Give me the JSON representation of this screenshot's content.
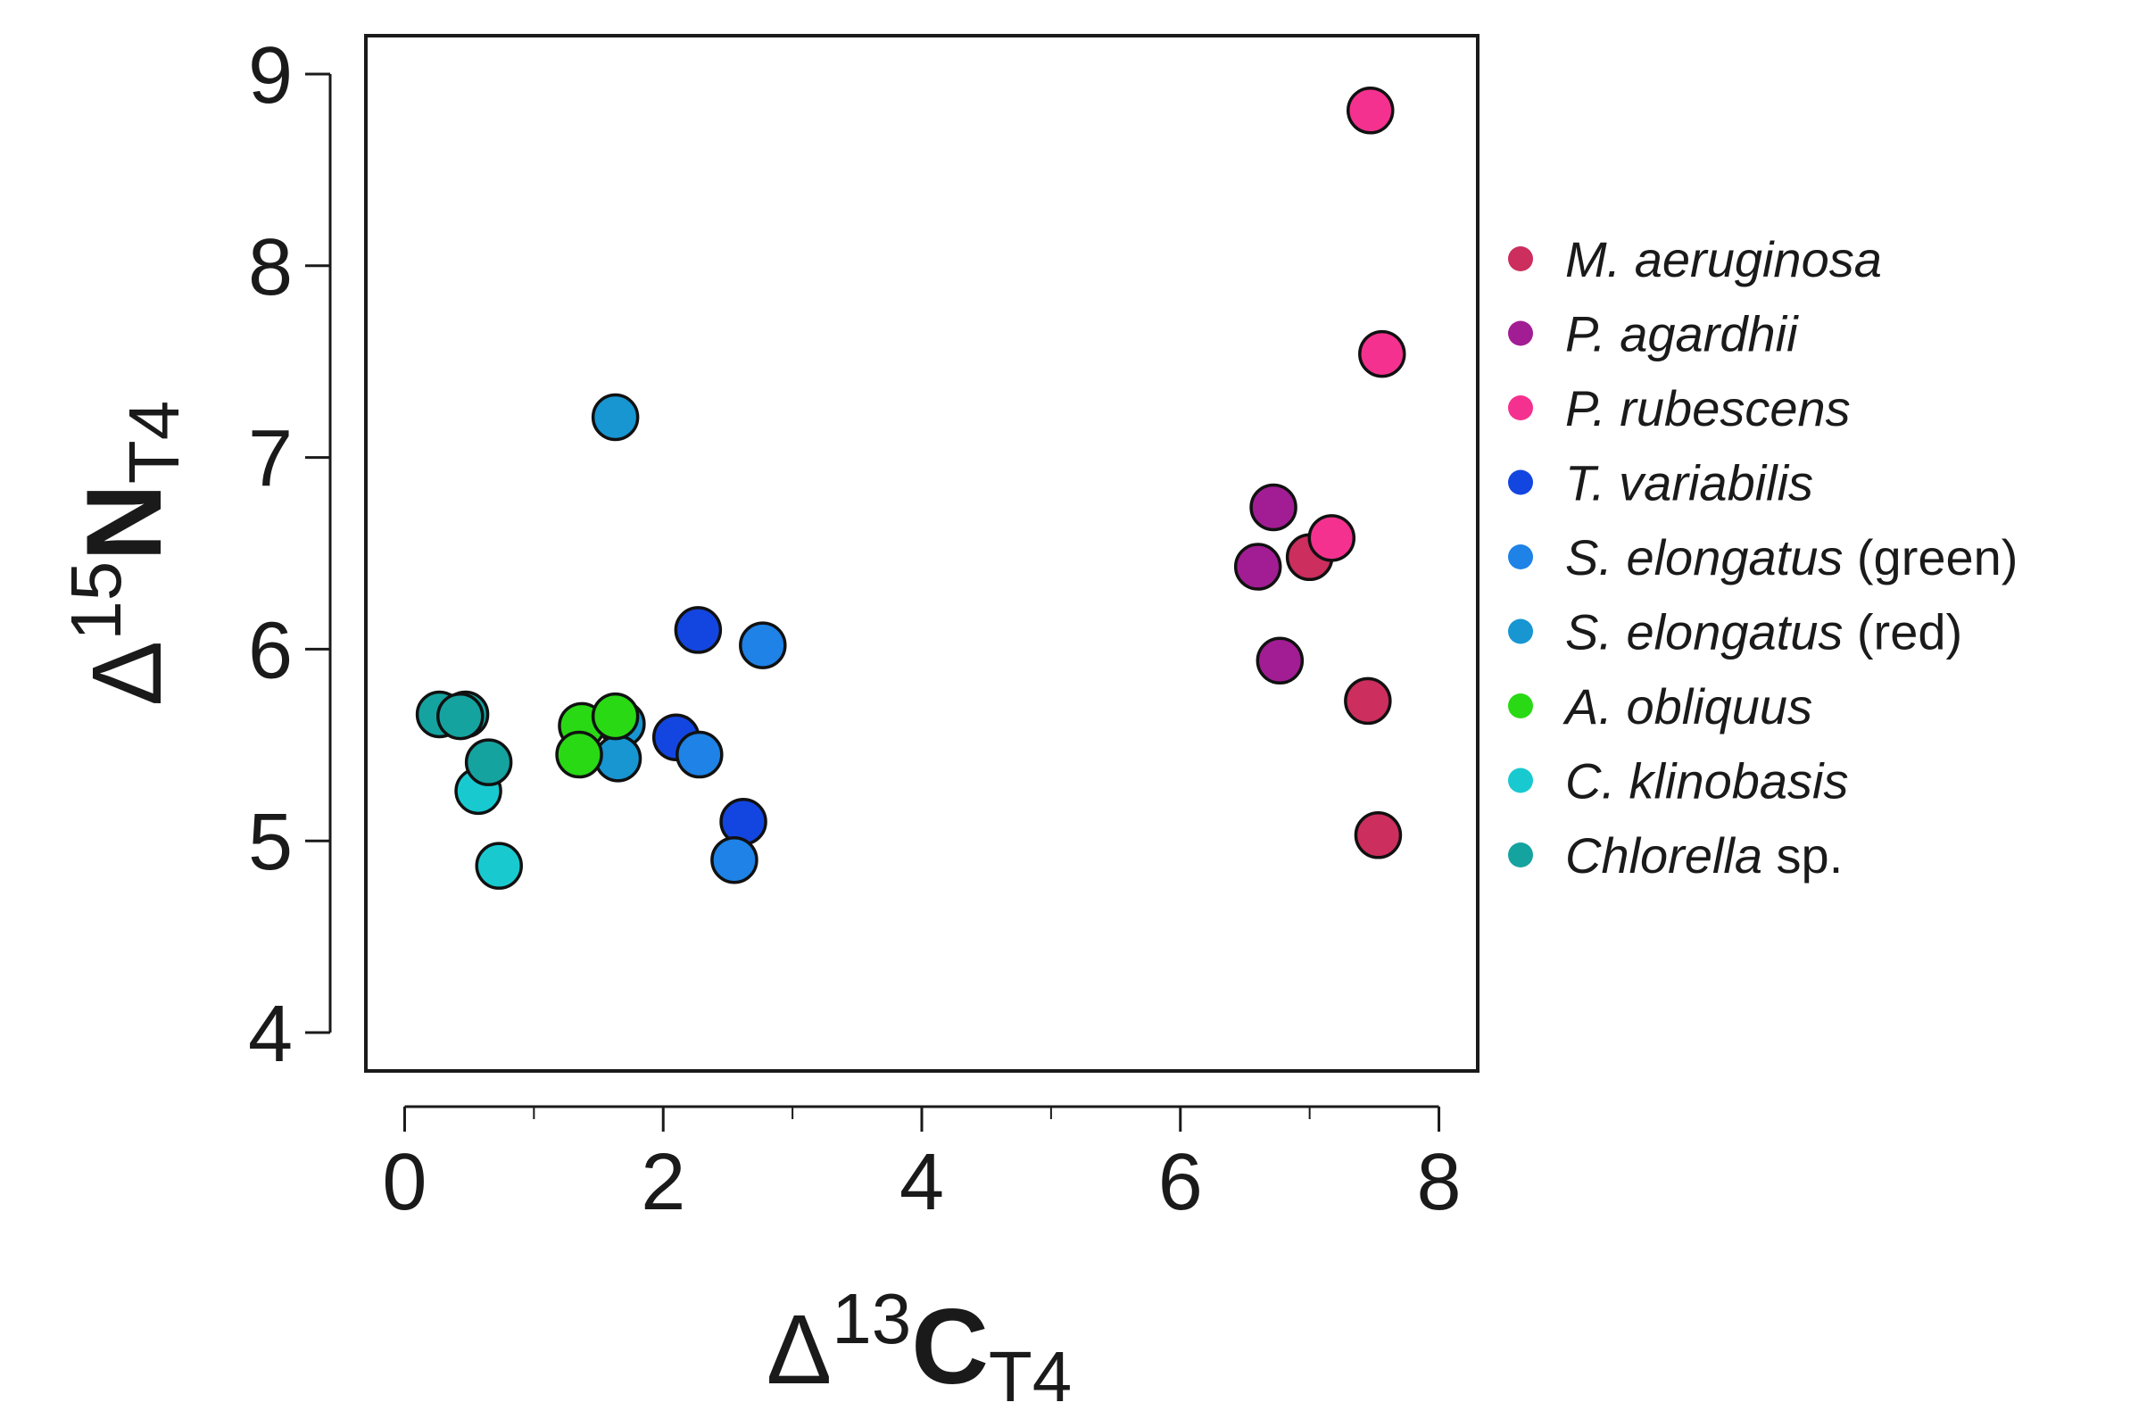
{
  "chart_data": {
    "type": "scatter",
    "title": "",
    "x_axis": {
      "label_symbol": "Δ",
      "label_superscript": "13",
      "label_main": "C",
      "label_subscript": "T4",
      "range": [
        -0.3,
        8.3
      ],
      "ticks": [
        0,
        2,
        4,
        6,
        8
      ],
      "tick_labels": [
        "0",
        "2",
        "4",
        "6",
        "8"
      ],
      "minor_ticks": [
        1,
        3,
        5,
        7
      ]
    },
    "y_axis": {
      "label_symbol": "Δ",
      "label_superscript": "15",
      "label_main": "N",
      "label_subscript": "T4",
      "range": [
        3.8,
        9.2
      ],
      "ticks": [
        4,
        5,
        6,
        7,
        8,
        9
      ],
      "tick_labels": [
        "4",
        "5",
        "6",
        "7",
        "8",
        "9"
      ]
    },
    "legend_position": "right",
    "series": [
      {
        "name": "M. aeruginosa",
        "italic": "M. aeruginosa",
        "suffix": "",
        "color": "#cc2e5d",
        "x": [
          7.0,
          7.45,
          7.53
        ],
        "y": [
          6.48,
          5.73,
          5.03
        ]
      },
      {
        "name": "P. agardhii",
        "italic": "P. agardhii",
        "suffix": "",
        "color": "#a21d94",
        "x": [
          6.72,
          6.6,
          6.77
        ],
        "y": [
          6.74,
          6.43,
          5.94
        ]
      },
      {
        "name": "P. rubescens",
        "italic": "P. rubescens",
        "suffix": "",
        "color": "#f5318f",
        "x": [
          7.47,
          7.56,
          7.17
        ],
        "y": [
          8.81,
          7.54,
          6.58
        ]
      },
      {
        "name": "T. variabilis",
        "italic": "T. variabilis",
        "suffix": "",
        "color": "#1346e0",
        "x": [
          2.27,
          2.1,
          2.62
        ],
        "y": [
          6.1,
          5.54,
          5.1
        ]
      },
      {
        "name": "S. elongatus (green)",
        "italic": "S. elongatus",
        "suffix": " (green)",
        "color": "#1e82e6",
        "x": [
          2.77,
          2.28,
          2.55
        ],
        "y": [
          6.02,
          5.45,
          4.9
        ]
      },
      {
        "name": "S. elongatus (red)",
        "italic": "S. elongatus",
        "suffix": " (red)",
        "color": "#1796d2",
        "x": [
          1.63,
          1.68,
          1.65
        ],
        "y": [
          7.21,
          5.61,
          5.43
        ]
      },
      {
        "name": "A. obliquus",
        "italic": "A. obliquus",
        "suffix": "",
        "color": "#29d914",
        "x": [
          1.37,
          1.35,
          1.63
        ],
        "y": [
          5.6,
          5.45,
          5.65
        ]
      },
      {
        "name": "C. klinobasis",
        "italic": "C. klinobasis",
        "suffix": "",
        "color": "#19c9d0",
        "x": [
          0.57,
          0.73
        ],
        "y": [
          5.26,
          4.87
        ]
      },
      {
        "name": "Chlorella sp.",
        "italic": "Chlorella",
        "suffix": " sp.",
        "color": "#15a3a0",
        "x": [
          0.27,
          0.47,
          0.65,
          0.43
        ],
        "y": [
          5.66,
          5.66,
          5.41,
          5.65
        ]
      }
    ]
  }
}
